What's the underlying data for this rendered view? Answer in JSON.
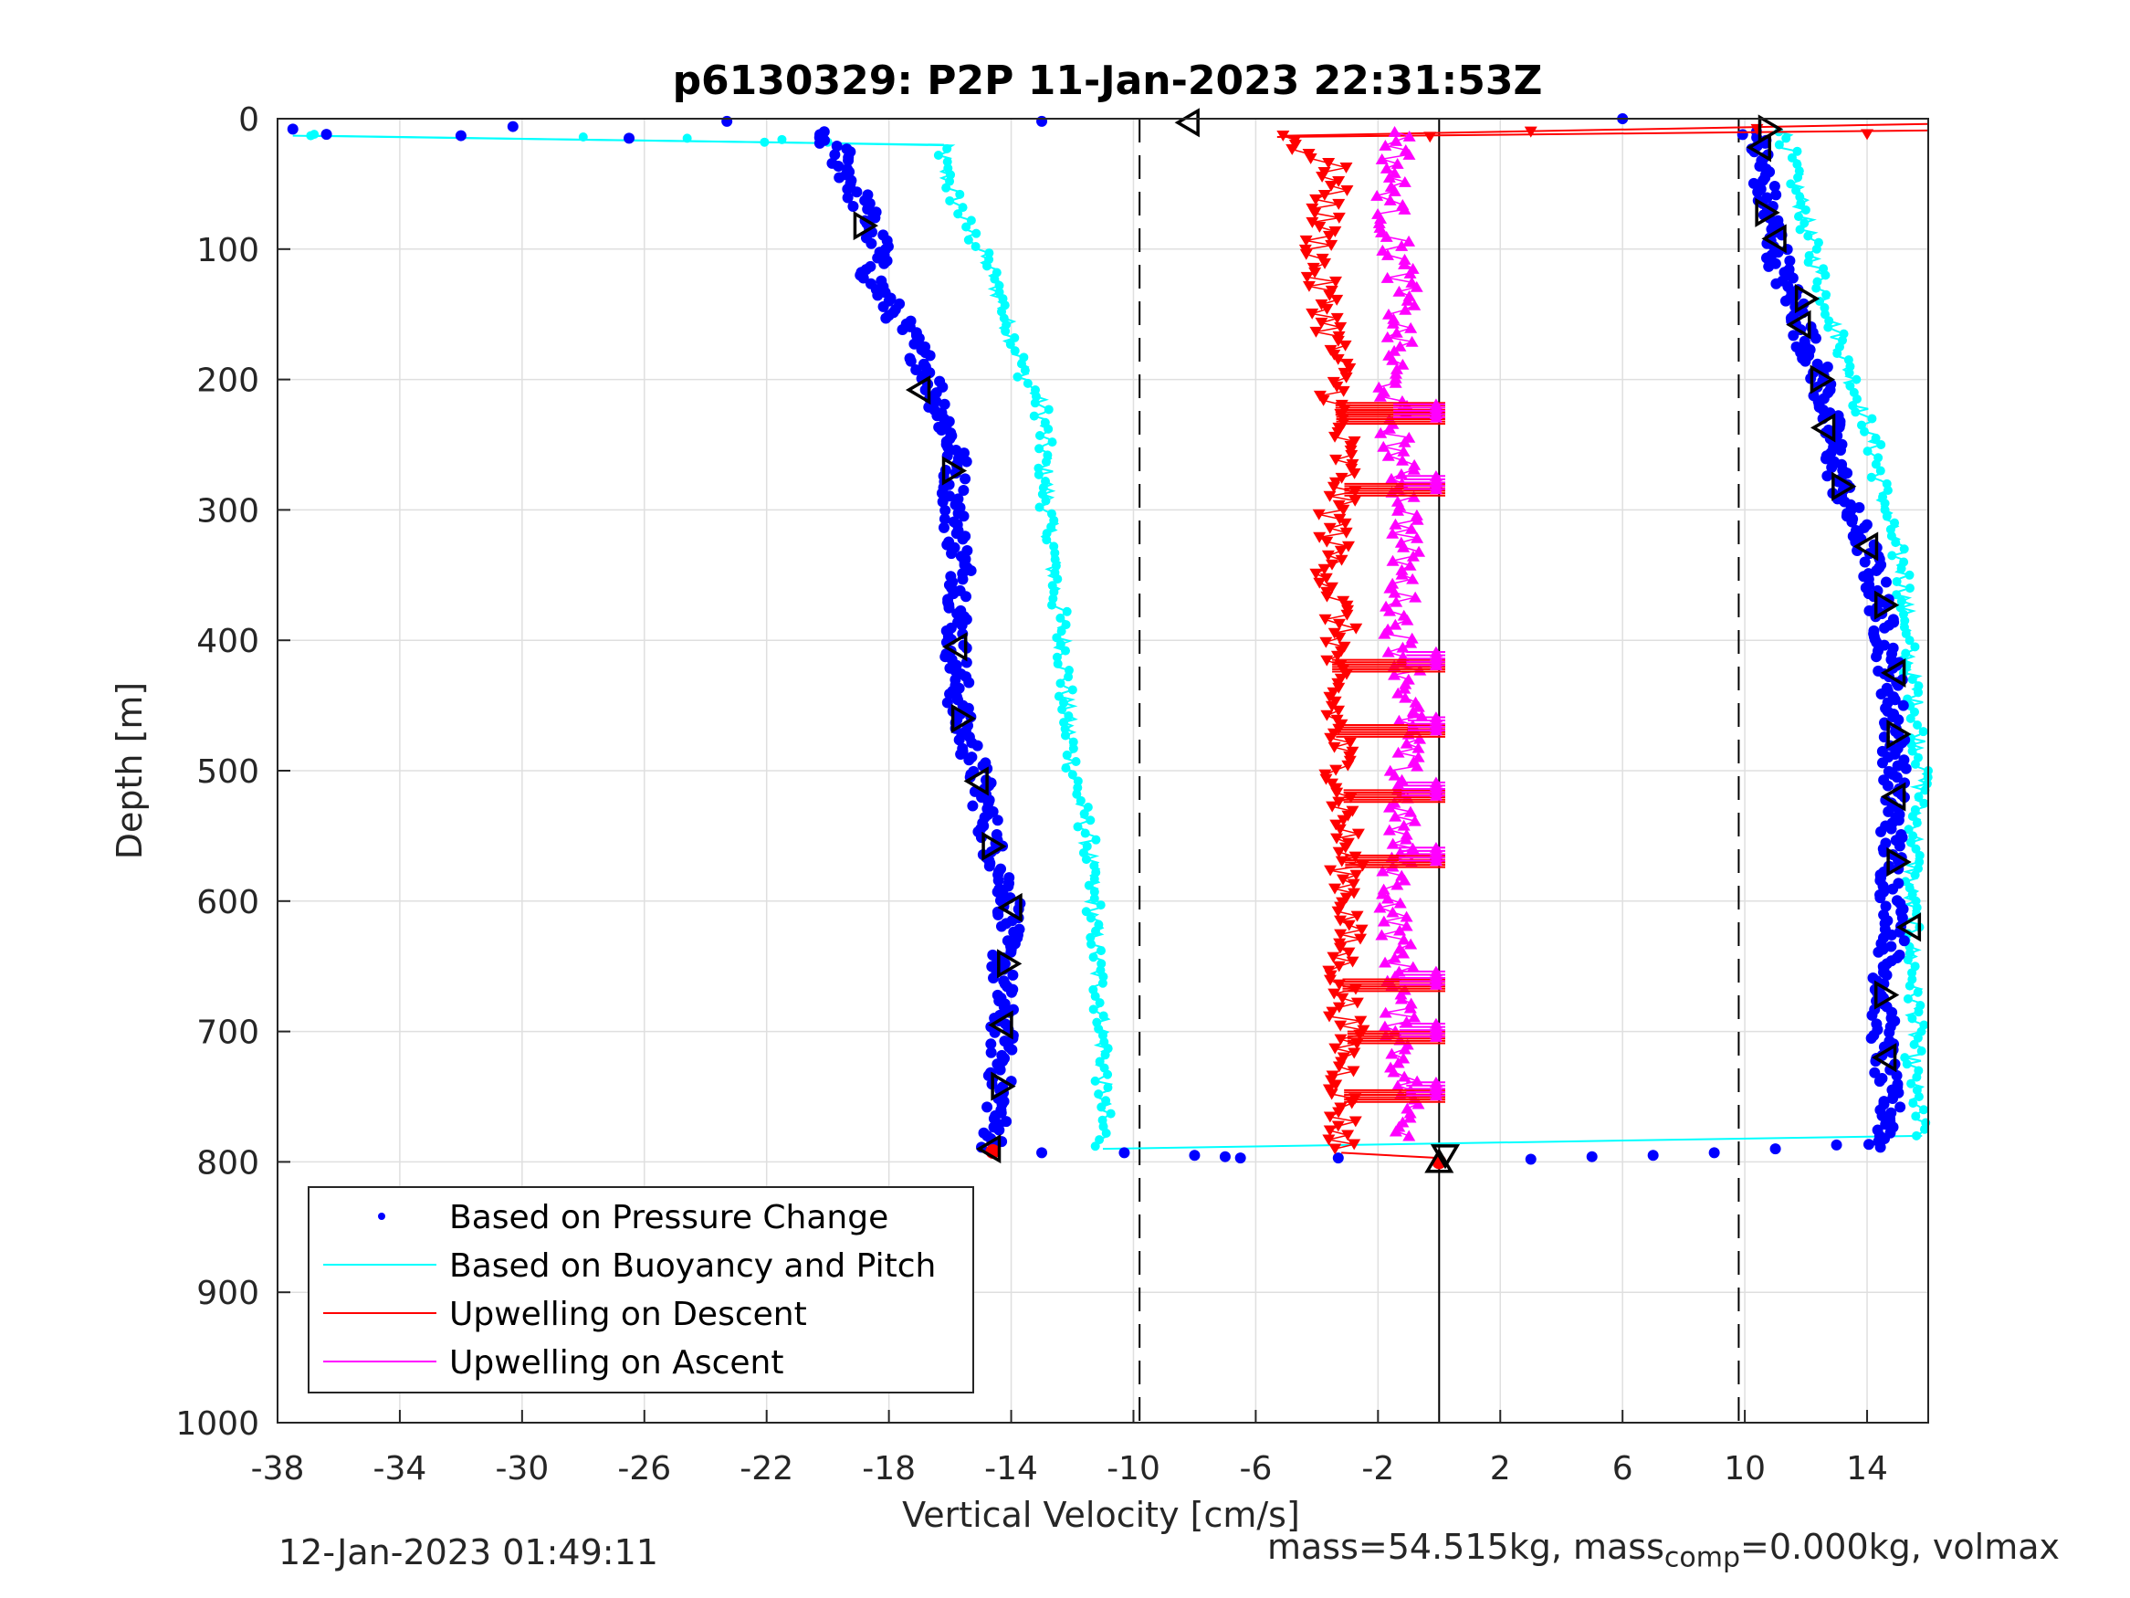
{
  "chart_data": {
    "type": "scatter",
    "title": "p6130329: P2P 11-Jan-2023 22:31:53Z",
    "xlabel": "Vertical Velocity [cm/s]",
    "ylabel": "Depth [m]",
    "xlim": [
      -38,
      16
    ],
    "ylim": [
      0,
      1000
    ],
    "y_reversed": true,
    "xticks": [
      -38,
      -34,
      -30,
      -26,
      -22,
      -18,
      -14,
      -10,
      -6,
      -2,
      2,
      6,
      10,
      14
    ],
    "xtick_labels": [
      "-38",
      "-34",
      "-30",
      "-26",
      "-22",
      "-18",
      "-14",
      "-10",
      "-6",
      "-2",
      "2",
      "6",
      "10",
      "14"
    ],
    "yticks": [
      0,
      100,
      200,
      300,
      400,
      500,
      600,
      700,
      800,
      900,
      1000
    ],
    "ytick_labels": [
      "0",
      "100",
      "200",
      "300",
      "400",
      "500",
      "600",
      "700",
      "800",
      "900",
      "1000"
    ],
    "grid": true,
    "legend_position": "bottom-left",
    "reference_lines": [
      {
        "x": -9.8,
        "style": "dashed",
        "color": "#000000"
      },
      {
        "x": 9.8,
        "style": "dashed",
        "color": "#000000"
      },
      {
        "x": 0,
        "style": "solid",
        "color": "#000000"
      }
    ],
    "series": [
      {
        "name": "Based on Pressure Change",
        "color": "#0000ff",
        "marker": "dot",
        "descent": {
          "depth": [
            10,
            25,
            35,
            50,
            80,
            100,
            120,
            150,
            180,
            200,
            230,
            260,
            300,
            350,
            400,
            460,
            500,
            560,
            600,
            650,
            700,
            750,
            790
          ],
          "velocity": [
            -20.5,
            -19.6,
            -19.5,
            -19.2,
            -18.6,
            -18.3,
            -18.6,
            -17.8,
            -17.0,
            -16.6,
            -16.2,
            -15.8,
            -15.9,
            -15.6,
            -15.8,
            -15.7,
            -15.1,
            -14.6,
            -14.0,
            -14.3,
            -14.3,
            -14.4,
            -14.6
          ]
        },
        "ascent": {
          "depth": [
            790,
            770,
            740,
            700,
            650,
            620,
            600,
            560,
            500,
            470,
            430,
            400,
            370,
            330,
            300,
            280,
            240,
            200,
            170,
            150,
            120,
            90,
            70,
            40,
            20,
            10
          ],
          "velocity": [
            14.3,
            14.8,
            14.6,
            14.5,
            14.6,
            15.0,
            14.8,
            14.8,
            14.9,
            14.9,
            14.8,
            14.6,
            14.4,
            14.0,
            13.4,
            13.1,
            12.8,
            12.5,
            12.0,
            11.8,
            11.2,
            11.0,
            10.7,
            10.6,
            10.4,
            10.3
          ]
        },
        "surface_points": [
          {
            "v": -37.5,
            "d": 8
          },
          {
            "v": -36.4,
            "d": 12
          },
          {
            "v": -32.0,
            "d": 13
          },
          {
            "v": -30.3,
            "d": 6
          },
          {
            "v": -26.5,
            "d": 15
          },
          {
            "v": -23.3,
            "d": 2
          },
          {
            "v": -13.0,
            "d": 2
          },
          {
            "v": 6.0,
            "d": 0
          }
        ],
        "bottom_points": [
          {
            "v": -13.0,
            "d": 793
          },
          {
            "v": -10.3,
            "d": 793
          },
          {
            "v": -8.0,
            "d": 795
          },
          {
            "v": -7.0,
            "d": 796
          },
          {
            "v": -6.5,
            "d": 797
          },
          {
            "v": -3.3,
            "d": 797
          },
          {
            "v": 3.0,
            "d": 798
          },
          {
            "v": 5.0,
            "d": 796
          },
          {
            "v": 7.0,
            "d": 795
          },
          {
            "v": 9.0,
            "d": 793
          },
          {
            "v": 11.0,
            "d": 790
          },
          {
            "v": 13.0,
            "d": 787
          }
        ]
      },
      {
        "name": "Based on Buoyancy and Pitch",
        "color": "#00ffff",
        "marker": "line+dot",
        "descent": {
          "depth": [
            13,
            20,
            40,
            80,
            120,
            160,
            200,
            220,
            260,
            300,
            350,
            400,
            450,
            500,
            550,
            600,
            650,
            700,
            750,
            790
          ],
          "velocity": [
            -37.0,
            -16.2,
            -16.2,
            -15.5,
            -14.6,
            -14.1,
            -13.5,
            -13.0,
            -12.9,
            -12.8,
            -12.6,
            -12.3,
            -12.2,
            -12.0,
            -11.5,
            -11.3,
            -11.2,
            -11.0,
            -11.0,
            -11.0
          ]
        },
        "ascent": {
          "depth": [
            780,
            760,
            720,
            700,
            650,
            600,
            550,
            500,
            450,
            400,
            350,
            300,
            250,
            200,
            150,
            100,
            60,
            30,
            10
          ],
          "velocity": [
            15.8,
            15.6,
            15.5,
            15.6,
            15.5,
            15.4,
            15.6,
            15.8,
            15.6,
            15.3,
            15.2,
            14.6,
            14.2,
            13.5,
            12.8,
            12.2,
            11.8,
            11.5,
            11.3
          ]
        },
        "bottom_link": [
          {
            "v": -11.0,
            "d": 790
          },
          {
            "v": 15.8,
            "d": 780
          }
        ]
      },
      {
        "name": "Upwelling on Descent",
        "color": "#ff0000",
        "marker": "triangle-down",
        "depth": [
          13,
          40,
          80,
          120,
          150,
          200,
          220,
          250,
          280,
          300,
          350,
          400,
          420,
          460,
          500,
          520,
          560,
          600,
          650,
          700,
          740,
          790
        ],
        "velocity": [
          -5.0,
          -3.4,
          -3.8,
          -4.0,
          -3.6,
          -3.3,
          -3.4,
          -3.2,
          -3.1,
          -3.4,
          -3.5,
          -3.2,
          -3.6,
          -3.4,
          -3.2,
          -3.1,
          -3.1,
          -2.9,
          -3.2,
          -3.0,
          -3.1,
          -3.2
        ],
        "surface_link": [
          {
            "v": -5.0,
            "d": 13
          },
          {
            "v": 16,
            "d": 4
          }
        ]
      },
      {
        "name": "Upwelling on Ascent",
        "color": "#ff00ff",
        "marker": "triangle-up",
        "depth": [
          780,
          760,
          720,
          700,
          650,
          600,
          560,
          500,
          460,
          420,
          400,
          350,
          300,
          250,
          200,
          160,
          120,
          80,
          40,
          10
        ],
        "velocity": [
          -1.0,
          -1.0,
          -1.2,
          -1.3,
          -1.3,
          -1.5,
          -1.3,
          -1.2,
          -1.0,
          -1.0,
          -1.3,
          -1.2,
          -1.0,
          -1.4,
          -1.6,
          -1.3,
          -1.2,
          -1.6,
          -1.5,
          -1.2
        ]
      }
    ],
    "hline_bursts": {
      "red": [
        218,
        225,
        280,
        415,
        465,
        515,
        565,
        660,
        700,
        745
      ],
      "magenta": [
        225,
        280,
        415,
        465,
        515,
        565,
        660,
        700,
        745
      ],
      "x_end": 0.2
    },
    "black_markers": [
      {
        "v": -8.2,
        "d": 3,
        "dir": "left"
      },
      {
        "v": -18.8,
        "d": 82,
        "dir": "right"
      },
      {
        "v": -17.0,
        "d": 208,
        "dir": "left"
      },
      {
        "v": -15.9,
        "d": 270,
        "dir": "right"
      },
      {
        "v": -15.8,
        "d": 405,
        "dir": "left"
      },
      {
        "v": -15.6,
        "d": 460,
        "dir": "right"
      },
      {
        "v": -15.1,
        "d": 508,
        "dir": "left"
      },
      {
        "v": -14.6,
        "d": 558,
        "dir": "right"
      },
      {
        "v": -14.0,
        "d": 605,
        "dir": "left"
      },
      {
        "v": -14.1,
        "d": 648,
        "dir": "right"
      },
      {
        "v": -14.3,
        "d": 695,
        "dir": "left"
      },
      {
        "v": -14.3,
        "d": 742,
        "dir": "right"
      },
      {
        "v": -14.7,
        "d": 790,
        "dir": "left"
      },
      {
        "v": 10.8,
        "d": 8,
        "dir": "right"
      },
      {
        "v": 10.5,
        "d": 22,
        "dir": "left"
      },
      {
        "v": 10.7,
        "d": 72,
        "dir": "right"
      },
      {
        "v": 11.0,
        "d": 92,
        "dir": "left"
      },
      {
        "v": 12.0,
        "d": 138,
        "dir": "right"
      },
      {
        "v": 11.8,
        "d": 158,
        "dir": "left"
      },
      {
        "v": 12.5,
        "d": 200,
        "dir": "right"
      },
      {
        "v": 12.6,
        "d": 237,
        "dir": "left"
      },
      {
        "v": 13.2,
        "d": 282,
        "dir": "right"
      },
      {
        "v": 14.0,
        "d": 328,
        "dir": "left"
      },
      {
        "v": 14.6,
        "d": 373,
        "dir": "right"
      },
      {
        "v": 14.9,
        "d": 425,
        "dir": "left"
      },
      {
        "v": 15.0,
        "d": 472,
        "dir": "right"
      },
      {
        "v": 14.9,
        "d": 520,
        "dir": "left"
      },
      {
        "v": 15.0,
        "d": 570,
        "dir": "right"
      },
      {
        "v": 15.4,
        "d": 620,
        "dir": "left"
      },
      {
        "v": 14.6,
        "d": 672,
        "dir": "right"
      },
      {
        "v": 14.6,
        "d": 720,
        "dir": "left"
      },
      {
        "v": 0.0,
        "d": 800,
        "dir": "up"
      },
      {
        "v": 0.2,
        "d": 795,
        "dir": "down"
      }
    ],
    "red_bottom_markers": [
      {
        "v": -14.6,
        "d": 792
      },
      {
        "v": 0.0,
        "d": 800
      }
    ],
    "red_surface_markers": [
      {
        "v": -0.3,
        "d": 14
      },
      {
        "v": 3.0,
        "d": 10
      },
      {
        "v": 10.4,
        "d": 8
      },
      {
        "v": 14.0,
        "d": 12
      }
    ]
  },
  "footer": {
    "timestamp": "12-Jan-2023 01:49:11",
    "mass_text_a": "mass=54.515kg, mass",
    "mass_sub": "comp",
    "mass_text_b": "=0.000kg, volmax"
  },
  "colors": {
    "axis": "#262626",
    "grid": "#dfdfdf"
  }
}
